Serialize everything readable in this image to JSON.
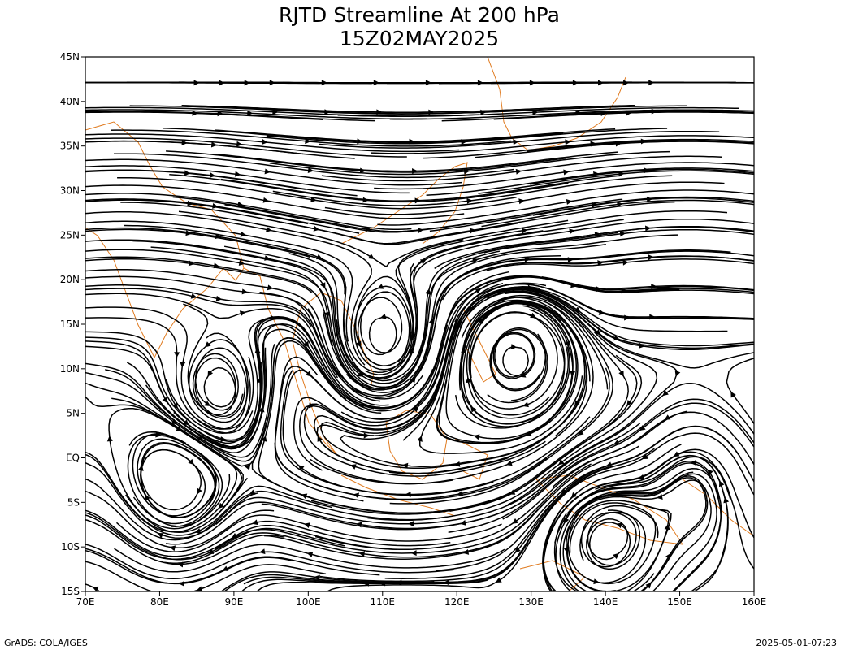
{
  "header": {
    "title": "RJTD Streamline At 200 hPa",
    "subtitle": "15Z02MAY2025"
  },
  "map": {
    "lat_labels": [
      "45N",
      "40N",
      "35N",
      "30N",
      "25N",
      "20N",
      "15N",
      "10N",
      "5N",
      "EQ",
      "5S",
      "10S",
      "15S"
    ],
    "lon_labels": [
      "70E",
      "80E",
      "90E",
      "100E",
      "110E",
      "120E",
      "130E",
      "140E",
      "150E",
      "160E"
    ]
  },
  "footer": {
    "left": "GrADS: COLA/IGES",
    "right": "2025-05-01-07:23"
  }
}
